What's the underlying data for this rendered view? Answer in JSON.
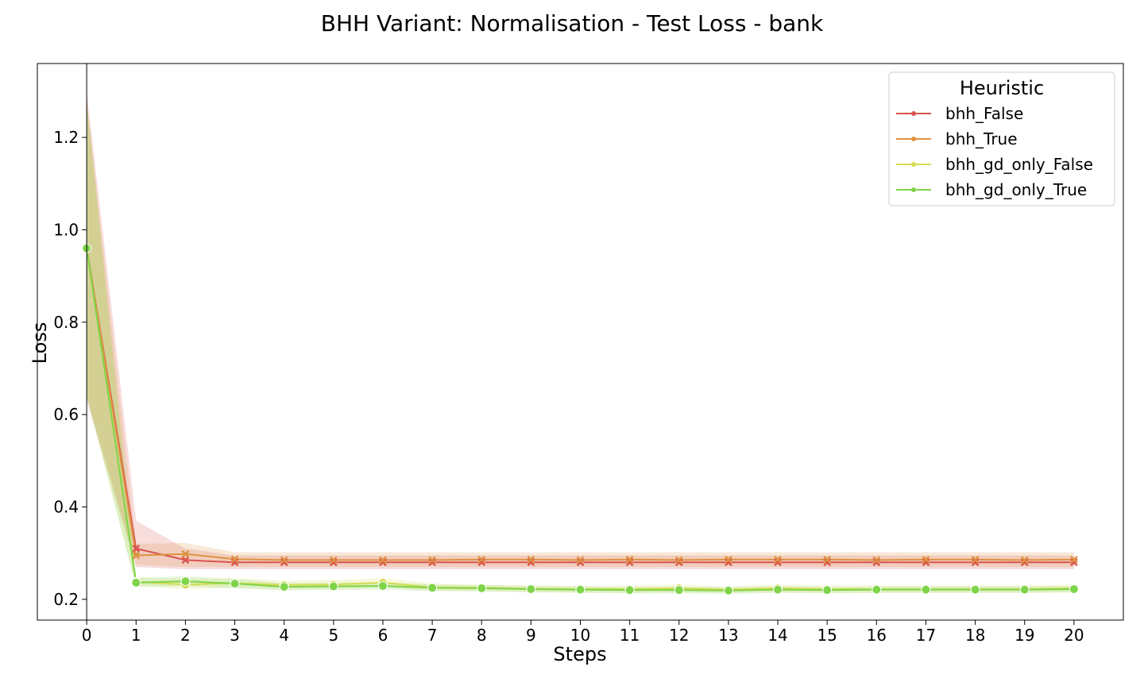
{
  "chart_data": {
    "type": "line",
    "title": "BHH Variant: Normalisation - Test Loss - bank",
    "xlabel": "Steps",
    "ylabel": "Loss",
    "xlim": [
      -1,
      21
    ],
    "ylim": [
      0.155,
      1.36
    ],
    "x_ticks": [
      0,
      1,
      2,
      3,
      4,
      5,
      6,
      7,
      8,
      9,
      10,
      11,
      12,
      13,
      14,
      15,
      16,
      17,
      18,
      19,
      20
    ],
    "y_ticks": [
      0.2,
      0.4,
      0.6,
      0.8,
      1.0,
      1.2
    ],
    "y_tick_labels": [
      "0.2",
      "0.4",
      "0.6",
      "0.8",
      "1.0",
      "1.2"
    ],
    "grid": false,
    "legend": {
      "title": "Heuristic",
      "placement": "top-right"
    },
    "x": [
      0,
      1,
      2,
      3,
      4,
      5,
      6,
      7,
      8,
      9,
      10,
      11,
      12,
      13,
      14,
      15,
      16,
      17,
      18,
      19,
      20
    ],
    "series": [
      {
        "name": "bhh_False",
        "color": "#d9534f",
        "marker": "x",
        "values": [
          0.96,
          0.31,
          0.285,
          0.28,
          0.28,
          0.28,
          0.28,
          0.28,
          0.28,
          0.28,
          0.28,
          0.28,
          0.28,
          0.28,
          0.28,
          0.28,
          0.28,
          0.28,
          0.28,
          0.28,
          0.28
        ],
        "lower": [
          0.63,
          0.27,
          0.265,
          0.265,
          0.265,
          0.265,
          0.265,
          0.265,
          0.265,
          0.265,
          0.265,
          0.265,
          0.265,
          0.265,
          0.265,
          0.265,
          0.265,
          0.265,
          0.265,
          0.265,
          0.265
        ],
        "upper": [
          1.3,
          0.37,
          0.31,
          0.295,
          0.295,
          0.295,
          0.295,
          0.295,
          0.295,
          0.295,
          0.295,
          0.295,
          0.295,
          0.295,
          0.295,
          0.295,
          0.295,
          0.295,
          0.295,
          0.295,
          0.295
        ]
      },
      {
        "name": "bhh_True",
        "color": "#dd9240",
        "marker": "x",
        "values": [
          0.96,
          0.295,
          0.298,
          0.287,
          0.285,
          0.285,
          0.285,
          0.285,
          0.286,
          0.286,
          0.285,
          0.286,
          0.285,
          0.286,
          0.286,
          0.286,
          0.285,
          0.286,
          0.286,
          0.285,
          0.286
        ],
        "lower": [
          0.64,
          0.275,
          0.27,
          0.27,
          0.27,
          0.27,
          0.27,
          0.27,
          0.27,
          0.27,
          0.27,
          0.27,
          0.27,
          0.27,
          0.27,
          0.27,
          0.27,
          0.27,
          0.27,
          0.27,
          0.27
        ],
        "upper": [
          1.28,
          0.32,
          0.322,
          0.302,
          0.302,
          0.302,
          0.302,
          0.302,
          0.302,
          0.302,
          0.302,
          0.302,
          0.302,
          0.302,
          0.302,
          0.302,
          0.302,
          0.302,
          0.302,
          0.302,
          0.302
        ]
      },
      {
        "name": "bhh_gd_only_False",
        "color": "#d4dc50",
        "marker": "o",
        "values": [
          0.96,
          0.238,
          0.232,
          0.235,
          0.231,
          0.232,
          0.236,
          0.226,
          0.225,
          0.223,
          0.222,
          0.222,
          0.224,
          0.221,
          0.224,
          0.222,
          0.222,
          0.222,
          0.222,
          0.222,
          0.224
        ],
        "lower": [
          0.64,
          0.228,
          0.222,
          0.225,
          0.222,
          0.222,
          0.226,
          0.218,
          0.218,
          0.216,
          0.215,
          0.214,
          0.215,
          0.214,
          0.215,
          0.214,
          0.214,
          0.214,
          0.214,
          0.214,
          0.215
        ],
        "upper": [
          1.28,
          0.248,
          0.244,
          0.246,
          0.24,
          0.242,
          0.246,
          0.234,
          0.232,
          0.23,
          0.229,
          0.23,
          0.232,
          0.228,
          0.232,
          0.23,
          0.23,
          0.23,
          0.23,
          0.23,
          0.232
        ]
      },
      {
        "name": "bhh_gd_only_True",
        "color": "#7fd44a",
        "marker": "o",
        "values": [
          0.96,
          0.236,
          0.239,
          0.234,
          0.227,
          0.228,
          0.229,
          0.225,
          0.224,
          0.222,
          0.221,
          0.22,
          0.22,
          0.219,
          0.221,
          0.22,
          0.221,
          0.221,
          0.221,
          0.221,
          0.222
        ],
        "lower": [
          0.64,
          0.228,
          0.228,
          0.224,
          0.219,
          0.22,
          0.221,
          0.218,
          0.217,
          0.215,
          0.214,
          0.213,
          0.213,
          0.212,
          0.214,
          0.213,
          0.214,
          0.214,
          0.214,
          0.214,
          0.215
        ],
        "upper": [
          1.28,
          0.246,
          0.25,
          0.244,
          0.235,
          0.236,
          0.237,
          0.232,
          0.231,
          0.229,
          0.228,
          0.227,
          0.227,
          0.226,
          0.228,
          0.227,
          0.228,
          0.228,
          0.228,
          0.228,
          0.229
        ]
      }
    ]
  }
}
